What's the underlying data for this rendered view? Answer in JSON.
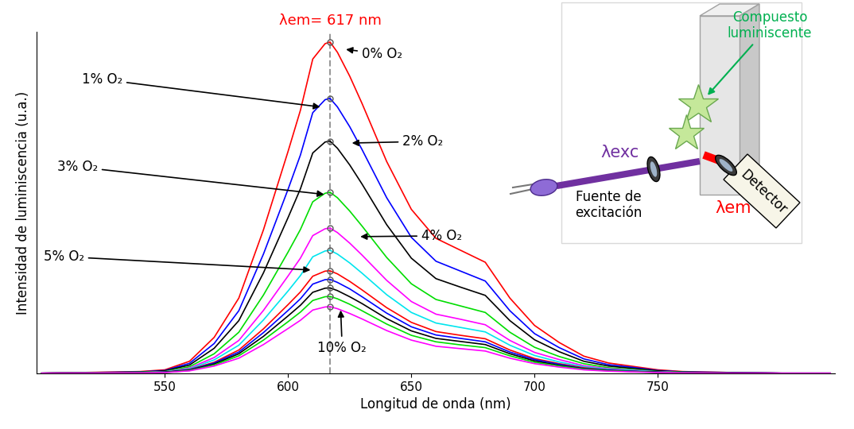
{
  "chart_data": {
    "type": "line",
    "xlabel": "Longitud de onda (nm)",
    "ylabel": "Intensidad de luminiscencia (u.a.)",
    "xlim": [
      498,
      822
    ],
    "ylim": [
      0,
      100
    ],
    "xticks": [
      550,
      600,
      650,
      700,
      750
    ],
    "tick_labels": "x",
    "grid": false,
    "reference_line": {
      "x": 617,
      "label": "λem= 617 nm"
    },
    "x": [
      500,
      540,
      550,
      560,
      570,
      580,
      590,
      600,
      605,
      610,
      615,
      617,
      620,
      625,
      630,
      640,
      650,
      660,
      670,
      680,
      690,
      700,
      710,
      720,
      730,
      740,
      750,
      760,
      780,
      800,
      820
    ],
    "series": [
      {
        "color": "#ff0000",
        "values": [
          0,
          0.5,
          1,
          3.5,
          10.5,
          22,
          42,
          65,
          77,
          92,
          96.5,
          97,
          94,
          87,
          79,
          62,
          48,
          39.5,
          36,
          32.5,
          22,
          14,
          9,
          5,
          3,
          2,
          1,
          0.5,
          0.2,
          0,
          0
        ]
      },
      {
        "color": "#0000ff",
        "values": [
          0,
          0.4,
          0.8,
          2.9,
          8.7,
          18.3,
          34.9,
          53.9,
          63.9,
          76.3,
          80.1,
          80.5,
          78.0,
          72.2,
          65.5,
          51.4,
          39.8,
          32.8,
          29.9,
          27.0,
          18.3,
          11.6,
          7.5,
          4.2,
          2.5,
          1.7,
          0.8,
          0.4,
          0.2,
          0,
          0
        ]
      },
      {
        "color": "#000000",
        "values": [
          0,
          0.3,
          0.7,
          2.4,
          7.3,
          15.4,
          29.4,
          45.6,
          54.0,
          64.5,
          67.7,
          68,
          65.9,
          61.0,
          55.4,
          43.5,
          33.7,
          27.7,
          25.2,
          22.8,
          15.4,
          9.8,
          6.3,
          3.5,
          2.1,
          1.4,
          0.7,
          0.3,
          0.1,
          0,
          0
        ]
      },
      {
        "color": "#00dd00",
        "values": [
          0,
          0.3,
          0.5,
          1.9,
          5.7,
          12.0,
          22.9,
          35.5,
          42.1,
          50.2,
          52.7,
          53,
          51.4,
          47.5,
          43.1,
          33.9,
          26.2,
          21.6,
          19.7,
          17.8,
          12.0,
          7.6,
          4.9,
          2.8,
          1.6,
          1.1,
          0.5,
          0.3,
          0.1,
          0,
          0
        ]
      },
      {
        "color": "#ff00ff",
        "values": [
          0,
          0.2,
          0.4,
          1.5,
          4.6,
          9.6,
          18.4,
          28.5,
          33.7,
          40.3,
          42.3,
          42.5,
          41.2,
          38.1,
          34.6,
          27.2,
          21.0,
          17.3,
          15.8,
          14.2,
          9.6,
          6.1,
          4.0,
          2.2,
          1.3,
          0.9,
          0.4,
          0.2,
          0.1,
          0,
          0
        ]
      },
      {
        "color": "#00e5ee",
        "values": [
          0,
          0.2,
          0.4,
          1.3,
          3.9,
          8.2,
          15.6,
          24.1,
          28.6,
          34.1,
          35.8,
          36,
          34.9,
          32.3,
          29.3,
          23.0,
          17.8,
          14.7,
          13.4,
          12.1,
          8.2,
          5.2,
          3.3,
          1.9,
          1.1,
          0.8,
          0.4,
          0.2,
          0.1,
          0,
          0
        ]
      },
      {
        "color": "#ff0000",
        "values": [
          0,
          0.2,
          0.3,
          1.1,
          3.2,
          6.8,
          13.0,
          20.1,
          23.8,
          28.4,
          29.9,
          30,
          29.1,
          26.9,
          24.4,
          19.2,
          14.9,
          12.2,
          11.1,
          10.1,
          6.8,
          4.3,
          2.8,
          1.6,
          0.9,
          0.6,
          0.3,
          0.2,
          0.1,
          0,
          0
        ]
      },
      {
        "color": "#0000ff",
        "values": [
          0,
          0.1,
          0.3,
          1.0,
          3.0,
          6.2,
          11.9,
          18.4,
          21.8,
          26.1,
          27.4,
          27.5,
          26.6,
          24.7,
          22.4,
          17.6,
          13.6,
          11.2,
          10.2,
          9.2,
          6.2,
          4.0,
          2.6,
          1.4,
          0.9,
          0.6,
          0.3,
          0.1,
          0.1,
          0,
          0
        ]
      },
      {
        "color": "#000000",
        "values": [
          0,
          0.1,
          0.3,
          0.9,
          2.7,
          5.7,
          10.8,
          16.8,
          19.9,
          23.7,
          24.9,
          25,
          24.2,
          22.4,
          20.4,
          16.0,
          12.4,
          10.2,
          9.3,
          8.4,
          5.7,
          3.6,
          2.3,
          1.3,
          0.8,
          0.5,
          0.3,
          0.1,
          0.1,
          0,
          0
        ]
      },
      {
        "color": "#00dd00",
        "values": [
          0,
          0.1,
          0.2,
          0.8,
          2.4,
          5.1,
          9.7,
          15.1,
          17.9,
          21.3,
          22.4,
          22.5,
          21.8,
          20.2,
          18.3,
          14.4,
          11.1,
          9.2,
          8.3,
          7.5,
          5.1,
          3.2,
          2.1,
          1.2,
          0.7,
          0.5,
          0.2,
          0.1,
          0,
          0,
          0
        ]
      },
      {
        "color": "#ff00ff",
        "values": [
          0,
          0.1,
          0.2,
          0.7,
          2.1,
          4.4,
          8.4,
          13.1,
          15.5,
          18.5,
          19.4,
          19.5,
          18.9,
          17.5,
          15.9,
          12.5,
          9.7,
          7.9,
          7.2,
          6.5,
          4.4,
          2.8,
          1.8,
          1.0,
          0.6,
          0.4,
          0.2,
          0.1,
          0,
          0,
          0
        ]
      }
    ],
    "annotations": [
      {
        "text": "0% O₂",
        "x": 622.6,
        "y": 94.9
      },
      {
        "text": "1% O₂",
        "x": 613.9,
        "y": 77.9
      },
      {
        "text": "2% O₂",
        "x": 625,
        "y": 67.4
      },
      {
        "text": "3% O₂",
        "x": 615.5,
        "y": 52.3
      },
      {
        "text": "4% O₂",
        "x": 628.4,
        "y": 40
      },
      {
        "text": "5% O₂",
        "x": 610,
        "y": 30.2
      },
      {
        "text": "10% O₂",
        "x": 621.3,
        "y": 19.1
      }
    ]
  },
  "diagram": {
    "excitation_source": "Fuente de\nexcitación",
    "excitation_wavelength": "λexc",
    "compound": "Compuesto\nluminiscente",
    "emission_wavelength": "λem",
    "detector": "Detector"
  }
}
